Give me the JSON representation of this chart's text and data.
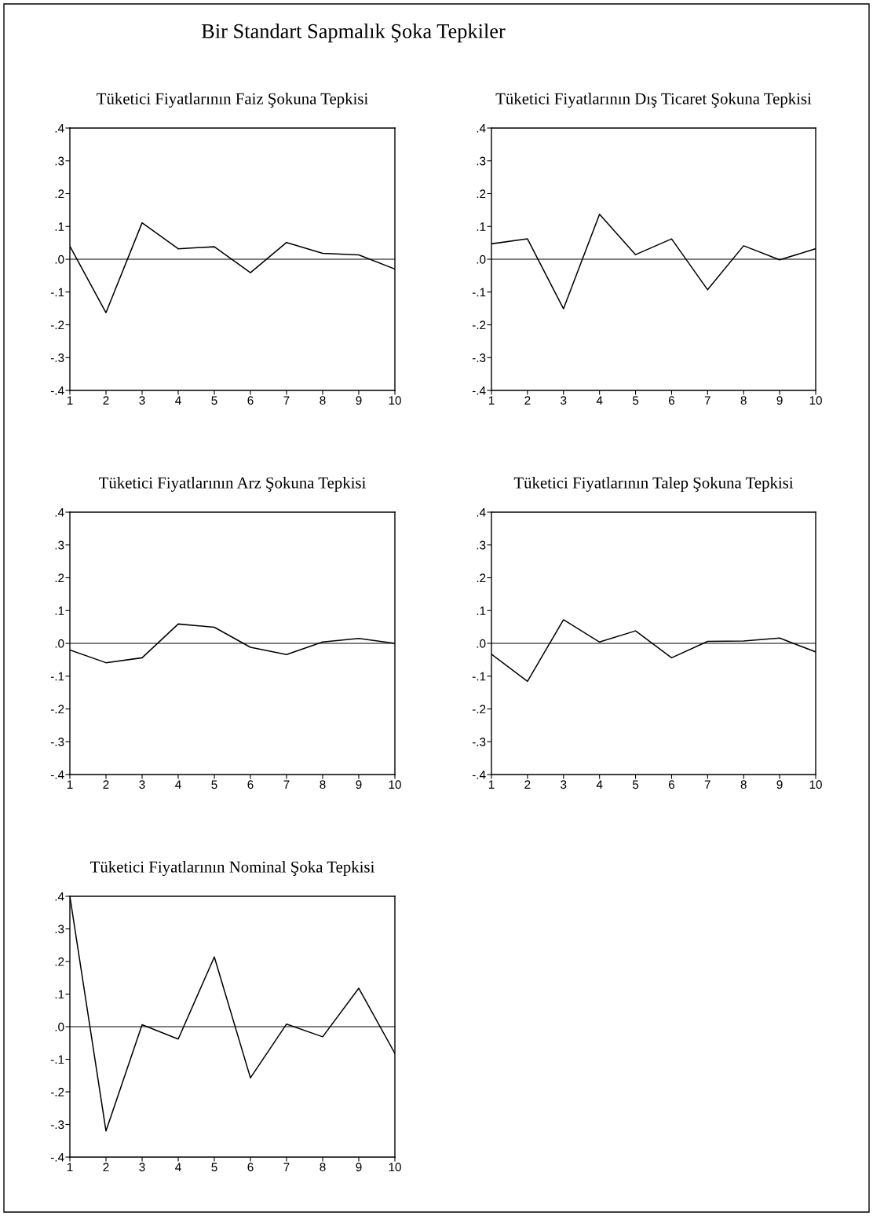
{
  "chart_data": [
    {
      "type": "line",
      "title": "Tüketici Fiyatlarının Faiz Şokuna Tepkisi",
      "annotations": [
        "Bir Standart Sapmalık Şoka Tepkiler"
      ],
      "x": [
        1,
        2,
        3,
        4,
        5,
        6,
        7,
        8,
        9,
        10
      ],
      "values": [
        0.04,
        -0.163,
        0.111,
        0.032,
        0.038,
        -0.041,
        0.051,
        0.018,
        0.013,
        -0.03
      ],
      "color": "#000000",
      "xlim": [
        1,
        10
      ],
      "xticks": [
        1,
        2,
        3,
        4,
        5,
        6,
        7,
        8,
        9,
        10
      ],
      "ylim": [
        -0.4,
        0.4
      ],
      "yticks": [
        {
          "value": -0.4,
          "label": "-.4"
        },
        {
          "value": -0.3,
          "label": "-.3"
        },
        {
          "value": -0.2,
          "label": "-.2"
        },
        {
          "value": -0.1,
          "label": "-.1"
        },
        {
          "value": 0,
          "label": ".0"
        },
        {
          "value": 0.1,
          "label": ".1"
        },
        {
          "value": 0.2,
          "label": ".2"
        },
        {
          "value": 0.3,
          "label": ".3"
        },
        {
          "value": 0.4,
          "label": ".4"
        }
      ],
      "ref_lines": [
        {
          "axis": "y",
          "value": 0,
          "color": "#000000"
        }
      ]
    },
    {
      "type": "line",
      "title": "Tüketici Fiyatlarının Dış Ticaret Şokuna Tepkisi",
      "x": [
        1,
        2,
        3,
        4,
        5,
        6,
        7,
        8,
        9,
        10
      ],
      "values": [
        0.047,
        0.062,
        -0.151,
        0.137,
        0.014,
        0.062,
        -0.093,
        0.041,
        -0.002,
        0.032
      ],
      "color": "#000000",
      "xlim": [
        1,
        10
      ],
      "xticks": [
        1,
        2,
        3,
        4,
        5,
        6,
        7,
        8,
        9,
        10
      ],
      "ylim": [
        -0.4,
        0.4
      ],
      "yticks": [
        {
          "value": -0.4,
          "label": "-.4"
        },
        {
          "value": -0.3,
          "label": "-.3"
        },
        {
          "value": -0.2,
          "label": "-.2"
        },
        {
          "value": -0.1,
          "label": "-.1"
        },
        {
          "value": 0,
          "label": ".0"
        },
        {
          "value": 0.1,
          "label": ".1"
        },
        {
          "value": 0.2,
          "label": ".2"
        },
        {
          "value": 0.3,
          "label": ".3"
        },
        {
          "value": 0.4,
          "label": ".4"
        }
      ],
      "ref_lines": [
        {
          "axis": "y",
          "value": 0,
          "color": "#000000"
        }
      ]
    },
    {
      "type": "line",
      "title": "Tüketici Fiyatlarının Arz Şokuna Tepkisi",
      "x": [
        1,
        2,
        3,
        4,
        5,
        6,
        7,
        8,
        9,
        10
      ],
      "values": [
        -0.02,
        -0.059,
        -0.044,
        0.059,
        0.049,
        -0.012,
        -0.034,
        0.004,
        0.015,
        0.0
      ],
      "color": "#000000",
      "xlim": [
        1,
        10
      ],
      "xticks": [
        1,
        2,
        3,
        4,
        5,
        6,
        7,
        8,
        9,
        10
      ],
      "ylim": [
        -0.4,
        0.4
      ],
      "yticks": [
        {
          "value": -0.4,
          "label": "-.4"
        },
        {
          "value": -0.3,
          "label": "-.3"
        },
        {
          "value": -0.2,
          "label": "-.2"
        },
        {
          "value": -0.1,
          "label": "-.1"
        },
        {
          "value": 0,
          "label": ".0"
        },
        {
          "value": 0.1,
          "label": ".1"
        },
        {
          "value": 0.2,
          "label": ".2"
        },
        {
          "value": 0.3,
          "label": ".3"
        },
        {
          "value": 0.4,
          "label": ".4"
        }
      ],
      "ref_lines": [
        {
          "axis": "y",
          "value": 0,
          "color": "#000000"
        }
      ]
    },
    {
      "type": "line",
      "title": "Tüketici Fiyatlarının Talep Şokuna Tepkisi",
      "x": [
        1,
        2,
        3,
        4,
        5,
        6,
        7,
        8,
        9,
        10
      ],
      "values": [
        -0.033,
        -0.116,
        0.072,
        0.004,
        0.038,
        -0.044,
        0.006,
        0.007,
        0.016,
        -0.026
      ],
      "color": "#000000",
      "xlim": [
        1,
        10
      ],
      "xticks": [
        1,
        2,
        3,
        4,
        5,
        6,
        7,
        8,
        9,
        10
      ],
      "ylim": [
        -0.4,
        0.4
      ],
      "yticks": [
        {
          "value": -0.4,
          "label": "-.4"
        },
        {
          "value": -0.3,
          "label": "-.3"
        },
        {
          "value": -0.2,
          "label": "-.2"
        },
        {
          "value": -0.1,
          "label": "-.1"
        },
        {
          "value": 0,
          "label": ".0"
        },
        {
          "value": 0.1,
          "label": ".1"
        },
        {
          "value": 0.2,
          "label": ".2"
        },
        {
          "value": 0.3,
          "label": ".3"
        },
        {
          "value": 0.4,
          "label": ".4"
        }
      ],
      "ref_lines": [
        {
          "axis": "y",
          "value": 0,
          "color": "#000000"
        }
      ]
    },
    {
      "type": "line",
      "title": "Tüketici Fiyatlarının Nominal Şoka Tepkisi",
      "x": [
        1,
        2,
        3,
        4,
        5,
        6,
        7,
        8,
        9,
        10
      ],
      "values": [
        0.4,
        -0.32,
        0.006,
        -0.038,
        0.214,
        -0.157,
        0.008,
        -0.031,
        0.118,
        -0.082
      ],
      "color": "#000000",
      "xlim": [
        1,
        10
      ],
      "xticks": [
        1,
        2,
        3,
        4,
        5,
        6,
        7,
        8,
        9,
        10
      ],
      "ylim": [
        -0.4,
        0.4
      ],
      "yticks": [
        {
          "value": -0.4,
          "label": "-.4"
        },
        {
          "value": -0.3,
          "label": "-.3"
        },
        {
          "value": -0.2,
          "label": "-.2"
        },
        {
          "value": -0.1,
          "label": "-.1"
        },
        {
          "value": 0,
          "label": ".0"
        },
        {
          "value": 0.1,
          "label": ".1"
        },
        {
          "value": 0.2,
          "label": ".2"
        },
        {
          "value": 0.3,
          "label": ".3"
        },
        {
          "value": 0.4,
          "label": ".4"
        }
      ],
      "ref_lines": [
        {
          "axis": "y",
          "value": 0,
          "color": "#000000"
        }
      ]
    }
  ]
}
